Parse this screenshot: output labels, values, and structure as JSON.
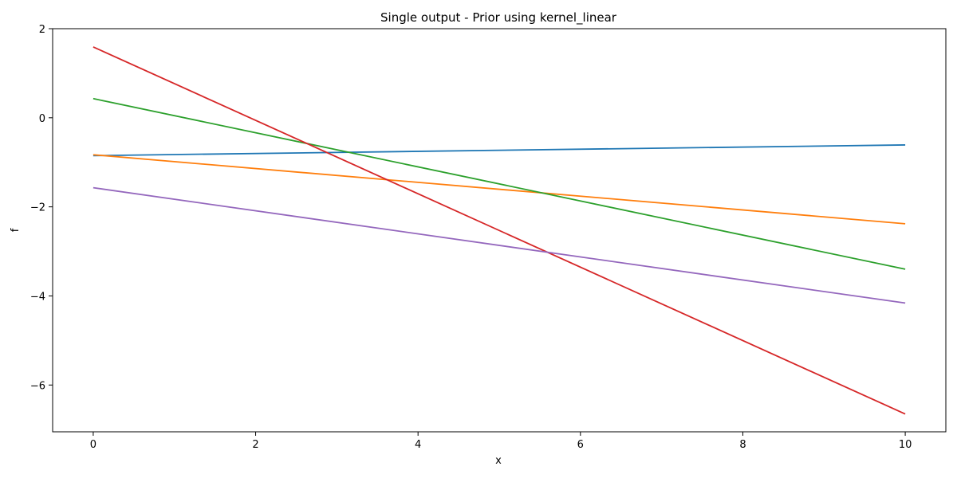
{
  "chart_data": {
    "type": "line",
    "title": "Single output - Prior using kernel_linear",
    "xlabel": "x",
    "ylabel": "f",
    "xlim": [
      -0.5,
      10.5
    ],
    "ylim": [
      -7.05,
      2.0
    ],
    "xticks": [
      0,
      2,
      4,
      6,
      8,
      10
    ],
    "yticks": [
      2,
      0,
      -2,
      -4,
      -6
    ],
    "x": [
      0,
      10
    ],
    "grid": false,
    "series": [
      {
        "color": "#1f77b4",
        "values": [
          -0.85,
          -0.61
        ]
      },
      {
        "color": "#ff7f0e",
        "values": [
          -0.83,
          -2.38
        ]
      },
      {
        "color": "#2ca02c",
        "values": [
          0.43,
          -3.4
        ]
      },
      {
        "color": "#d62728",
        "values": [
          1.59,
          -6.65
        ]
      },
      {
        "color": "#9467bd",
        "values": [
          -1.57,
          -4.16
        ]
      }
    ]
  }
}
